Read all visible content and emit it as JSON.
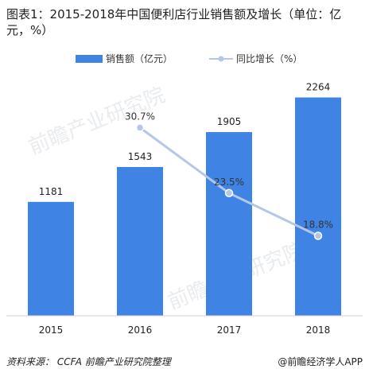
{
  "chart_data": {
    "type": "bar",
    "title": "图表1：2015-2018年中国便利店行业销售额及增长（单位：亿元，%）",
    "categories": [
      "2015",
      "2016",
      "2017",
      "2018"
    ],
    "series": [
      {
        "name": "销售额（亿元）",
        "type": "bar",
        "values": [
          1181,
          1543,
          1905,
          2264
        ],
        "color": "#3f83e4"
      },
      {
        "name": "同比增长（%）",
        "type": "line",
        "values": [
          null,
          30.7,
          23.5,
          18.8
        ],
        "labels": [
          "",
          "30.7%",
          "23.5%",
          "18.8%"
        ],
        "color": "#b4c7e7"
      }
    ],
    "bar_ylim": [
      0,
      2450
    ],
    "line_ylim": [
      10,
      36
    ],
    "legend_position": "top",
    "grid": false
  },
  "footer": {
    "source": "资料来源：  CCFA  前瞻产业研究院整理",
    "brand": "@前瞻经济学人APP"
  },
  "watermark": {
    "text": "前瞻产业研究院",
    "color": "#d8dde3"
  }
}
